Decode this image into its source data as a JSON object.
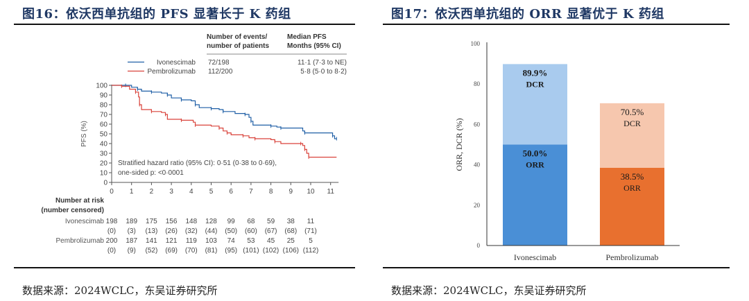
{
  "left_panel": {
    "title": "图16：依沃西单抗组的 PFS 显著长于 K 药组",
    "source": "数据来源：2024WCLC，东吴证券研究所"
  },
  "right_panel": {
    "title": "图17：依沃西单抗组的 ORR 显著优于 K 药组",
    "source": "数据来源：2024WCLC，东吴证券研究所"
  },
  "colors": {
    "ivonescimab_line": "#1f5fa6",
    "pembrolizumab_line": "#d9423a",
    "ivo_orr": "#4a8fd6",
    "ivo_dcr": "#a9cbee",
    "pem_orr": "#e8702f",
    "pem_dcr": "#f6c7ae",
    "title": "#1f3864"
  },
  "chart_data": [
    {
      "type": "line",
      "title": "Kaplan-Meier PFS",
      "xlabel": "",
      "ylabel": "PFS (%)",
      "xlim": [
        0,
        11.4
      ],
      "ylim": [
        0,
        100
      ],
      "x_ticks": [
        "0",
        "1",
        "2",
        "3",
        "4",
        "5",
        "6",
        "7",
        "8",
        "9",
        "10",
        "11"
      ],
      "y_ticks": [
        "0",
        "10",
        "20",
        "30",
        "40",
        "50",
        "60",
        "70",
        "80",
        "90",
        "100"
      ],
      "legend": {
        "header_events": [
          "Number of events/",
          "number of patients"
        ],
        "header_median": [
          "Median PFS",
          "Months (95% CI)"
        ],
        "rows": [
          {
            "name": "Ivonescimab",
            "events": "72/198",
            "median": "11·1 (7·3 to NE)"
          },
          {
            "name": "Pembrolizumab",
            "events": "112/200",
            "median": "5·8 (5·0 to 8·2)"
          }
        ]
      },
      "annotation": [
        "Stratified hazard ratio (95% CI): 0·51 (0·38 to 0·69),",
        "one-sided p: <0·0001"
      ],
      "series": [
        {
          "name": "Ivonescimab",
          "steps": [
            [
              0,
              100
            ],
            [
              0.7,
              100
            ],
            [
              1.0,
              98
            ],
            [
              1.3,
              96
            ],
            [
              1.5,
              94
            ],
            [
              2.0,
              93
            ],
            [
              2.5,
              92
            ],
            [
              2.8,
              90
            ],
            [
              3.0,
              87
            ],
            [
              3.5,
              85
            ],
            [
              4.0,
              84
            ],
            [
              4.2,
              80
            ],
            [
              4.4,
              77
            ],
            [
              5.0,
              76
            ],
            [
              5.4,
              75
            ],
            [
              5.6,
              73
            ],
            [
              6.2,
              71
            ],
            [
              6.7,
              70
            ],
            [
              6.9,
              67
            ],
            [
              7.0,
              63
            ],
            [
              7.1,
              59
            ],
            [
              8.0,
              58
            ],
            [
              8.3,
              57
            ],
            [
              8.5,
              56
            ],
            [
              9.6,
              53
            ],
            [
              9.7,
              51
            ],
            [
              11.0,
              51
            ],
            [
              11.1,
              48
            ],
            [
              11.2,
              45
            ],
            [
              11.3,
              45
            ]
          ]
        },
        {
          "name": "Pembrolizumab",
          "steps": [
            [
              0,
              100
            ],
            [
              0.5,
              99
            ],
            [
              0.9,
              96
            ],
            [
              1.2,
              93
            ],
            [
              1.35,
              88
            ],
            [
              1.4,
              80
            ],
            [
              1.5,
              75
            ],
            [
              2.0,
              73
            ],
            [
              2.5,
              72
            ],
            [
              2.7,
              70
            ],
            [
              2.8,
              65
            ],
            [
              3.5,
              64
            ],
            [
              4.1,
              62
            ],
            [
              4.2,
              59
            ],
            [
              5.0,
              58
            ],
            [
              5.4,
              56
            ],
            [
              5.6,
              53
            ],
            [
              5.8,
              51
            ],
            [
              6.0,
              49
            ],
            [
              6.6,
              48
            ],
            [
              6.9,
              46
            ],
            [
              7.2,
              45
            ],
            [
              8.0,
              44
            ],
            [
              8.2,
              42
            ],
            [
              8.5,
              40
            ],
            [
              9.5,
              40
            ],
            [
              9.6,
              38
            ],
            [
              9.7,
              34
            ],
            [
              9.8,
              30
            ],
            [
              9.9,
              26
            ],
            [
              11.3,
              26
            ]
          ]
        }
      ],
      "risk_table": {
        "title": [
          "Number at risk",
          "(number censored)"
        ],
        "rows": [
          {
            "name": "Ivonescimab",
            "at_risk": [
              "198",
              "189",
              "175",
              "156",
              "148",
              "128",
              "99",
              "68",
              "59",
              "38",
              "11"
            ],
            "censored": [
              "(0)",
              "(3)",
              "(13)",
              "(26)",
              "(32)",
              "(44)",
              "(50)",
              "(60)",
              "(67)",
              "(68)",
              "(71)"
            ]
          },
          {
            "name": "Pembrolizumab",
            "at_risk": [
              "200",
              "187",
              "141",
              "121",
              "119",
              "103",
              "74",
              "53",
              "45",
              "25",
              "5"
            ],
            "censored": [
              "(0)",
              "(9)",
              "(52)",
              "(69)",
              "(70)",
              "(81)",
              "(95)",
              "(101)",
              "(102)",
              "(106)",
              "(112)"
            ]
          }
        ]
      }
    },
    {
      "type": "bar",
      "title": "ORR and DCR",
      "xlabel": "",
      "ylabel": "ORR, DCR (%)",
      "ylim": [
        0,
        100
      ],
      "y_ticks": [
        "0",
        "20",
        "40",
        "60",
        "80",
        "100"
      ],
      "categories": [
        "Ivonescimab",
        "Pembrolizumab"
      ],
      "series": [
        {
          "name": "ORR",
          "values": [
            50.0,
            38.5
          ],
          "labels": [
            "50.0%",
            "38.5%"
          ]
        },
        {
          "name": "DCR",
          "values": [
            89.9,
            70.5
          ],
          "labels": [
            "89.9%",
            "70.5%"
          ]
        }
      ],
      "grid": false
    }
  ]
}
